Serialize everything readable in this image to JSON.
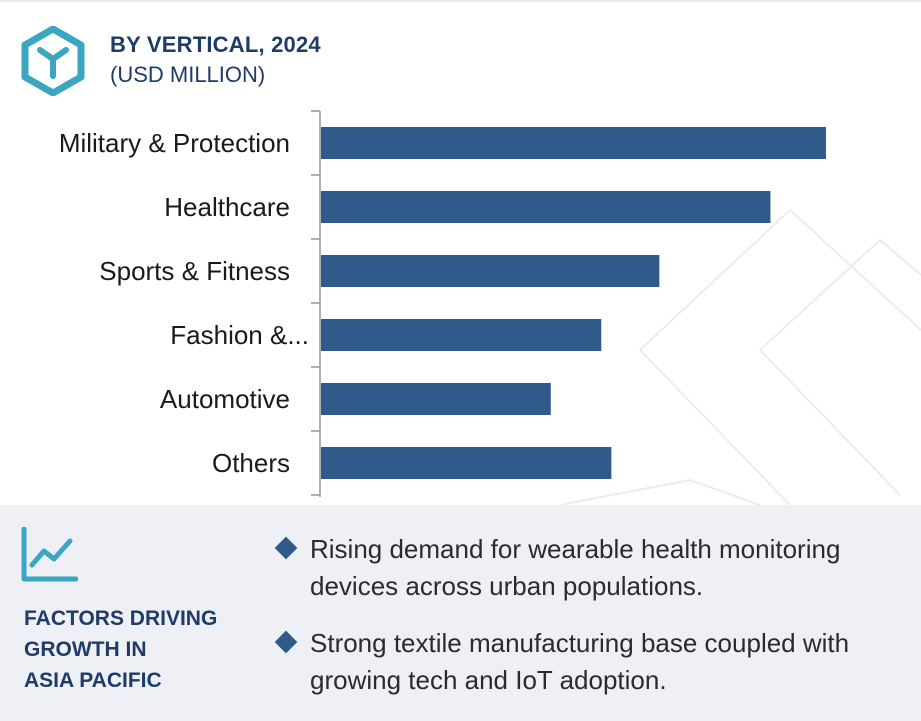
{
  "header": {
    "title": "BY VERTICAL, 2024",
    "subtitle": "(USD MILLION)"
  },
  "colors": {
    "bar": "#2f5a8a",
    "title": "#1f3b68",
    "accent": "#3aa6c2",
    "panel_bg": "#eef0f6"
  },
  "chart_data": {
    "type": "bar",
    "orientation": "horizontal",
    "title": "BY VERTICAL, 2024",
    "subtitle": "(USD MILLION)",
    "categories": [
      "Military & Protection",
      "Healthcare",
      "Sports & Fitness",
      "Fashion &...",
      "Automotive",
      "Others"
    ],
    "values": [
      100,
      89,
      67,
      55.5,
      45.5,
      57.5
    ],
    "value_axis_visible": false,
    "grid": false,
    "legend": "none"
  },
  "factors": {
    "icon": "line-chart-icon",
    "title_lines": [
      "FACTORS DRIVING",
      "GROWTH IN",
      "ASIA PACIFIC"
    ],
    "items": [
      "Rising demand for wearable health monitoring devices across urban populations.",
      "Strong textile manufacturing base coupled with growing tech and IoT adoption."
    ]
  }
}
